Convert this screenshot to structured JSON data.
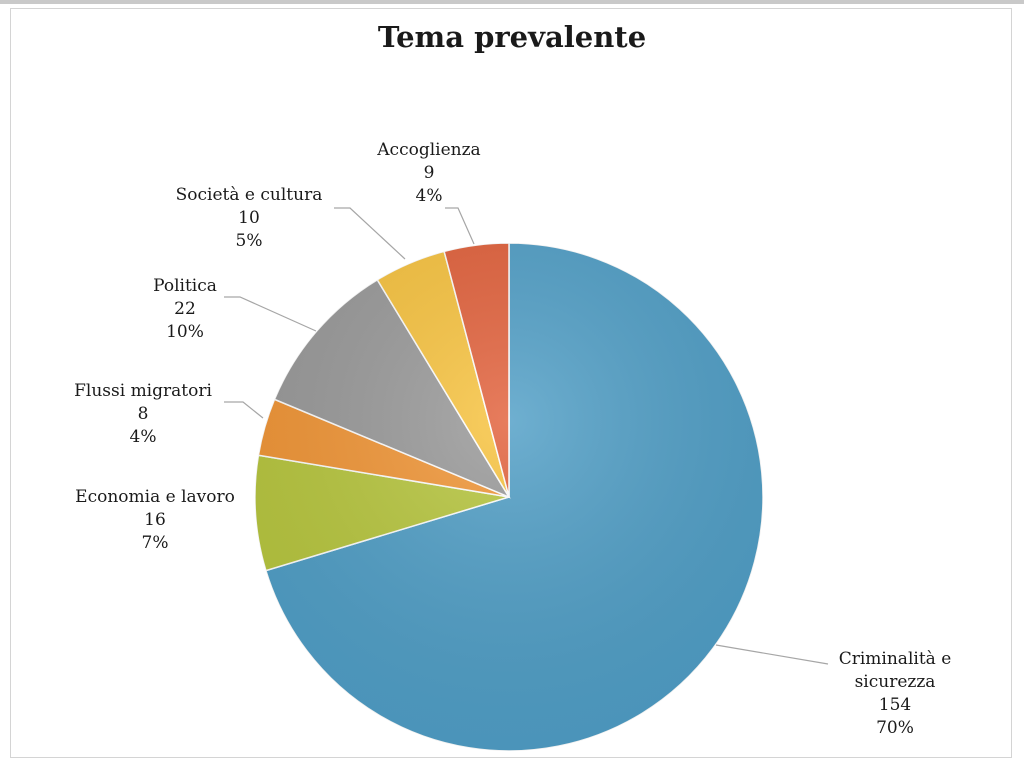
{
  "chart_data": {
    "type": "pie",
    "title": "Tema prevalente",
    "start_angle_deg": 0,
    "direction": "clockwise",
    "legend": "none",
    "slices": [
      {
        "label": [
          "Criminalità e",
          "sicurezza"
        ],
        "value": 154,
        "percent": "70%",
        "color": "#4f9ec6"
      },
      {
        "label": [
          "Economia e lavoro"
        ],
        "value": 16,
        "percent": "7%",
        "color": "#b7c63d"
      },
      {
        "label": [
          "Flussi migratori"
        ],
        "value": 8,
        "percent": "4%",
        "color": "#f19535"
      },
      {
        "label": [
          "Politica"
        ],
        "value": 22,
        "percent": "10%",
        "color": "#999999"
      },
      {
        "label": [
          "Società e cultura"
        ],
        "value": 10,
        "percent": "5%",
        "color": "#f8c33e"
      },
      {
        "label": [
          "Accoglienza"
        ],
        "value": 9,
        "percent": "4%",
        "color": "#e2603a"
      }
    ]
  }
}
